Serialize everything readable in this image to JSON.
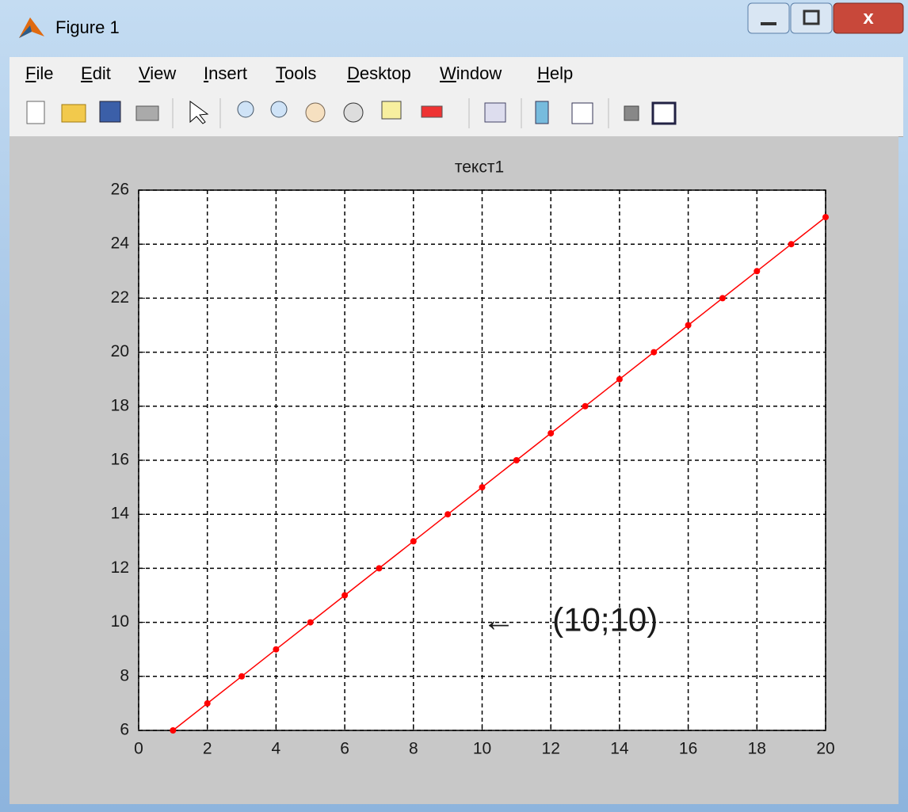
{
  "window": {
    "title": "Figure 1"
  },
  "menu": [
    "File",
    "Edit",
    "View",
    "Insert",
    "Tools",
    "Desktop",
    "Window",
    "Help"
  ],
  "chart_data": {
    "type": "line",
    "title": "текст1",
    "x": [
      1,
      2,
      3,
      4,
      5,
      6,
      7,
      8,
      9,
      10,
      11,
      12,
      13,
      14,
      15,
      16,
      17,
      18,
      19,
      20
    ],
    "series": [
      {
        "color": "#ff0000",
        "values": [
          6,
          7,
          8,
          9,
          10,
          11,
          12,
          13,
          14,
          15,
          16,
          17,
          18,
          19,
          20,
          21,
          22,
          23,
          24,
          25
        ]
      }
    ],
    "xlim": [
      0,
      20
    ],
    "ylim": [
      6,
      26
    ],
    "xticks": [
      0,
      2,
      4,
      6,
      8,
      10,
      12,
      14,
      16,
      18,
      20
    ],
    "yticks": [
      6,
      8,
      10,
      12,
      14,
      16,
      18,
      20,
      22,
      24,
      26
    ],
    "grid": true,
    "annotation": {
      "text": "←    (10;10)",
      "x": 10,
      "y": 10
    }
  }
}
